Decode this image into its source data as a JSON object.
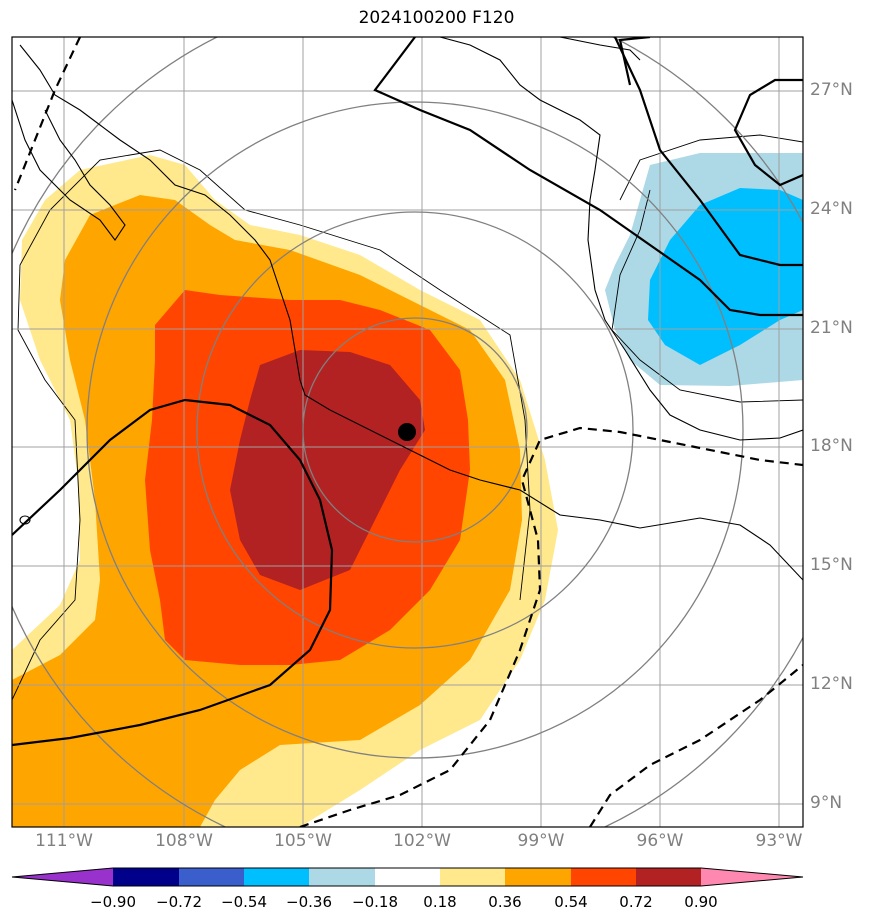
{
  "title": "2024100200 F120",
  "lat_labels": [
    "27°N",
    "24°N",
    "21°N",
    "18°N",
    "15°N",
    "12°N",
    "9°N"
  ],
  "lon_labels": [
    "111°W",
    "108°W",
    "105°W",
    "102°W",
    "99°W",
    "96°W",
    "93°W"
  ],
  "colorbar": {
    "ticks": [
      "−0.90",
      "−0.72",
      "−0.54",
      "−0.36",
      "−0.18",
      "0.18",
      "0.36",
      "0.54",
      "0.72",
      "0.90"
    ],
    "colors": [
      "#9932cc",
      "#00008b",
      "#3a5fcd",
      "#00bfff",
      "#add8e6",
      "#ffffff",
      "#ffe98c",
      "#ffa500",
      "#ff4500",
      "#b22222",
      "#ff88b0"
    ]
  },
  "map": {
    "extent": {
      "lon_min": -112.3,
      "lon_max": -92.4,
      "lat_min": 8.4,
      "lat_max": 28.3
    },
    "marker_label": "storm-center",
    "colors": {
      "coast": "#000000",
      "grid": "#a0a0a0",
      "rings": "#808080"
    }
  }
}
